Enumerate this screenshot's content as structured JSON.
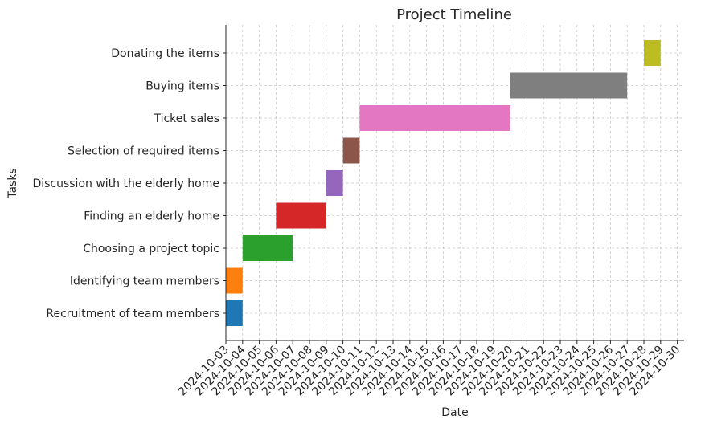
{
  "chart_data": {
    "type": "gantt",
    "title": "Project Timeline",
    "xlabel": "Date",
    "ylabel": "Tasks",
    "x_range": [
      "2024-10-03",
      "2024-10-30"
    ],
    "grid": true,
    "tasks": [
      {
        "name": "Recruitment of team members",
        "start": "2024-10-03",
        "end": "2024-10-04",
        "color": "#1f77b4"
      },
      {
        "name": "Identifying team members",
        "start": "2024-10-03",
        "end": "2024-10-04",
        "color": "#ff7f0e"
      },
      {
        "name": "Choosing a project topic",
        "start": "2024-10-04",
        "end": "2024-10-07",
        "color": "#2ca02c"
      },
      {
        "name": "Finding an elderly home",
        "start": "2024-10-06",
        "end": "2024-10-09",
        "color": "#d62728"
      },
      {
        "name": "Discussion with the elderly home",
        "start": "2024-10-09",
        "end": "2024-10-10",
        "color": "#9467bd"
      },
      {
        "name": "Selection of required items",
        "start": "2024-10-10",
        "end": "2024-10-11",
        "color": "#8c564b"
      },
      {
        "name": "Ticket sales",
        "start": "2024-10-11",
        "end": "2024-10-20",
        "color": "#e377c2"
      },
      {
        "name": "Buying items",
        "start": "2024-10-20",
        "end": "2024-10-27",
        "color": "#7f7f7f"
      },
      {
        "name": "Donating the items",
        "start": "2024-10-28",
        "end": "2024-10-29",
        "color": "#bcbd22"
      }
    ],
    "x_tick_labels": [
      "2024-10-03",
      "2024-10-04",
      "2024-10-05",
      "2024-10-06",
      "2024-10-07",
      "2024-10-08",
      "2024-10-09",
      "2024-10-10",
      "2024-10-11",
      "2024-10-12",
      "2024-10-13",
      "2024-10-14",
      "2024-10-15",
      "2024-10-16",
      "2024-10-17",
      "2024-10-18",
      "2024-10-19",
      "2024-10-20",
      "2024-10-21",
      "2024-10-22",
      "2024-10-23",
      "2024-10-24",
      "2024-10-25",
      "2024-10-26",
      "2024-10-27",
      "2024-10-28",
      "2024-10-29",
      "2024-10-30"
    ]
  }
}
